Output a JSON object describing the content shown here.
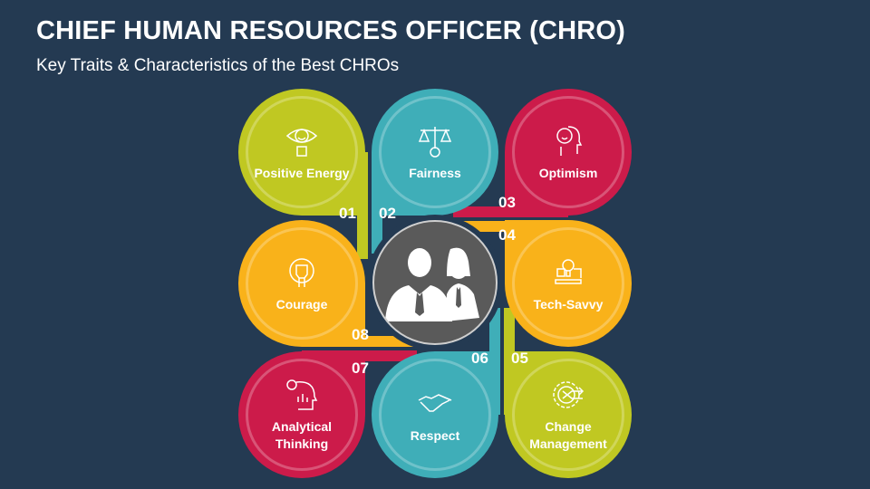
{
  "title": "CHIEF HUMAN RESOURCES OFFICER (CHRO)",
  "subtitle": "Key Traits & Characteristics of the Best CHROs",
  "colors": {
    "background": "#243a52",
    "green": "#c0c822",
    "teal": "#3faeb8",
    "red": "#cc1b4a",
    "orange": "#f9b21a",
    "center": "#5a5a5a"
  },
  "center_icon": "business-people-icon",
  "traits": [
    {
      "number": "01",
      "label": "Positive Energy",
      "icon": "positive-mind-eye-icon"
    },
    {
      "number": "02",
      "label": "Fairness",
      "icon": "justice-scales-icon"
    },
    {
      "number": "03",
      "label": "Optimism",
      "icon": "smiling-head-icon"
    },
    {
      "number": "04",
      "label": "Tech-Savvy",
      "icon": "tech-lightbulb-laptop-icon"
    },
    {
      "number": "05",
      "label": "Change Management",
      "icon": "gear-arrows-icon"
    },
    {
      "number": "06",
      "label": "Respect",
      "icon": "handshake-icon"
    },
    {
      "number": "07",
      "label": "Analytical Thinking",
      "icon": "analytics-head-icon"
    },
    {
      "number": "08",
      "label": "Courage",
      "icon": "raised-fist-icon"
    }
  ]
}
